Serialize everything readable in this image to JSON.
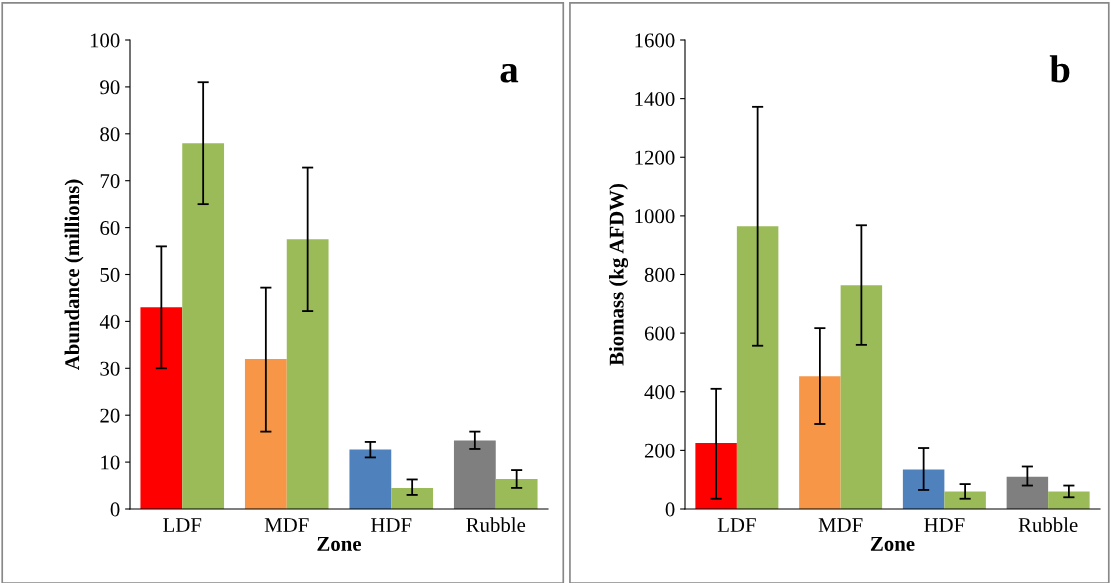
{
  "chart_data": [
    {
      "type": "bar",
      "ylabel": "Abundance (millions)",
      "xlabel": "Zone",
      "annotations": [
        "a"
      ],
      "categories": [
        "LDF",
        "MDF",
        "HDF",
        "Rubble"
      ],
      "ylim": [
        0,
        100
      ],
      "yticks": [
        0,
        10,
        20,
        30,
        40,
        50,
        60,
        70,
        80,
        90,
        100
      ],
      "grid": false,
      "legend": false,
      "series": [
        {
          "colors": [
            "#ff0000",
            "#f79646",
            "#4f81bd",
            "#7f7f7f"
          ],
          "values": [
            43,
            32,
            12.7,
            14.6
          ],
          "errors": [
            [
              30,
              56
            ],
            [
              16.5,
              47.2
            ],
            [
              11,
              14.3
            ],
            [
              12.8,
              16.5
            ]
          ]
        },
        {
          "color": "#9bbb59",
          "values": [
            78,
            57.5,
            4.5,
            6.4
          ],
          "errors": [
            [
              65,
              91
            ],
            [
              42.2,
              72.8
            ],
            [
              3,
              6.3
            ],
            [
              4.5,
              8.3
            ]
          ]
        }
      ]
    },
    {
      "type": "bar",
      "ylabel": "Biomass (kg AFDW)",
      "xlabel": "Zone",
      "annotations": [
        "b"
      ],
      "categories": [
        "LDF",
        "MDF",
        "HDF",
        "Rubble"
      ],
      "ylim": [
        0,
        1600
      ],
      "yticks": [
        0,
        200,
        400,
        600,
        800,
        1000,
        1200,
        1400,
        1600
      ],
      "grid": false,
      "legend": false,
      "series": [
        {
          "colors": [
            "#ff0000",
            "#f79646",
            "#4f81bd",
            "#7f7f7f"
          ],
          "values": [
            225,
            453,
            135,
            110
          ],
          "errors": [
            [
              35,
              410
            ],
            [
              290,
              617
            ],
            [
              65,
              208
            ],
            [
              80,
              145
            ]
          ]
        },
        {
          "color": "#9bbb59",
          "values": [
            965,
            763,
            60,
            60
          ],
          "errors": [
            [
              557,
              1372
            ],
            [
              560,
              968
            ],
            [
              35,
              85
            ],
            [
              40,
              80
            ]
          ]
        }
      ]
    }
  ]
}
